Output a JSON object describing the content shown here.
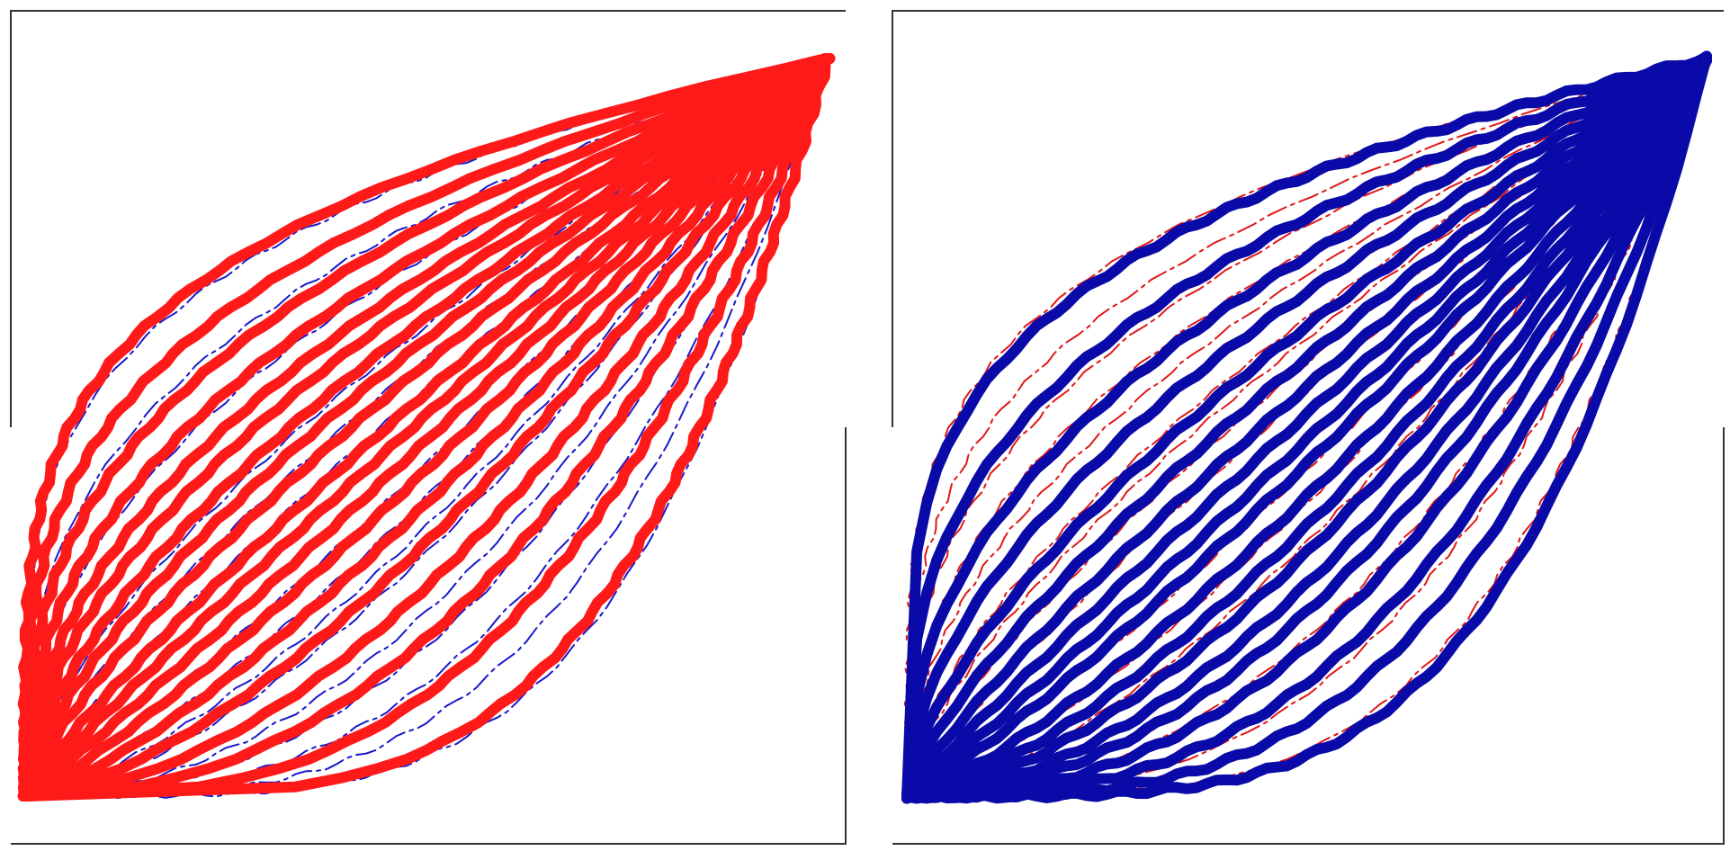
{
  "panels": [
    {
      "id": "left",
      "solid_color": "#ff1a1a",
      "dashed_color": "#1a1acc",
      "solid_family": "steep",
      "dashed_family": "shallow"
    },
    {
      "id": "right",
      "solid_color": "#0a0aa8",
      "dashed_color": "#e01818",
      "solid_family": "shallow",
      "dashed_family": "steep"
    }
  ],
  "families": {
    "steep": {
      "description_curves": 19,
      "exponents": [
        0.25,
        0.35,
        0.45,
        0.55,
        0.65,
        0.75,
        0.85,
        0.95,
        1.05,
        1.15,
        1.3,
        1.45,
        1.6,
        1.8,
        2.0,
        2.3,
        2.7,
        3.3,
        4.2
      ]
    },
    "shallow": {
      "description_curves": 19,
      "exponents": [
        0.25,
        0.35,
        0.45,
        0.55,
        0.65,
        0.75,
        0.85,
        0.95,
        1.05,
        1.15,
        1.3,
        1.45,
        1.6,
        1.8,
        2.0,
        2.3,
        2.7,
        3.3,
        4.2
      ]
    }
  }
}
